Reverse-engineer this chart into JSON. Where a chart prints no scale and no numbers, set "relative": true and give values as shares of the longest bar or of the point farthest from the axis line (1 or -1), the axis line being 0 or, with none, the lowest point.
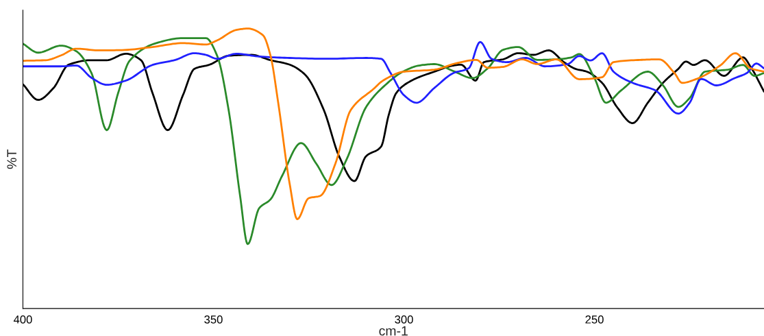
{
  "chart_data": {
    "type": "line",
    "relative": true,
    "xlabel": "cm-1",
    "ylabel": "%T",
    "xlim": [
      400,
      205.5
    ],
    "xticks": [
      400,
      350,
      300,
      250
    ],
    "grid": false,
    "marker": "none",
    "line_style": "solid",
    "series": [
      {
        "color": "#000000",
        "x": [
          400,
          396,
          392,
          388,
          382,
          378,
          373,
          369,
          366,
          362,
          358,
          355,
          351,
          346,
          340,
          335,
          330,
          326,
          321,
          317,
          313,
          310,
          306,
          304,
          302,
          298,
          292,
          287,
          285,
          281.2,
          279,
          274,
          270,
          266,
          262,
          258,
          255,
          252,
          248,
          244,
          240,
          236,
          232,
          228,
          226,
          224,
          221,
          216,
          211,
          209,
          205.5
        ],
        "values": [
          0.801,
          0.745,
          0.787,
          0.871,
          0.887,
          0.887,
          0.91,
          0.887,
          0.77,
          0.637,
          0.762,
          0.856,
          0.871,
          0.903,
          0.906,
          0.887,
          0.871,
          0.836,
          0.708,
          0.543,
          0.455,
          0.543,
          0.578,
          0.691,
          0.77,
          0.814,
          0.846,
          0.868,
          0.871,
          0.814,
          0.88,
          0.89,
          0.912,
          0.906,
          0.922,
          0.88,
          0.856,
          0.846,
          0.806,
          0.718,
          0.662,
          0.735,
          0.806,
          0.856,
          0.882,
          0.87,
          0.887,
          0.831,
          0.897,
          0.863,
          0.775
        ]
      },
      {
        "color": "#2a8a2a",
        "x": [
          400,
          396,
          390,
          386,
          382,
          378,
          375,
          372,
          365,
          358,
          352,
          349,
          346,
          343,
          341,
          338,
          335,
          332,
          327,
          323,
          319,
          315,
          310,
          305,
          300,
          296,
          292,
          287,
          282,
          278,
          274,
          270,
          265,
          260,
          256,
          254,
          250,
          247,
          243,
          236,
          232,
          228,
          225,
          221,
          215,
          211,
          208,
          205.5
        ],
        "values": [
          0.946,
          0.914,
          0.939,
          0.919,
          0.841,
          0.637,
          0.77,
          0.885,
          0.948,
          0.966,
          0.966,
          0.902,
          0.708,
          0.402,
          0.23,
          0.358,
          0.39,
          0.473,
          0.591,
          0.517,
          0.441,
          0.534,
          0.718,
          0.797,
          0.848,
          0.868,
          0.873,
          0.848,
          0.823,
          0.858,
          0.924,
          0.934,
          0.888,
          0.89,
          0.897,
          0.909,
          0.823,
          0.735,
          0.779,
          0.846,
          0.797,
          0.72,
          0.752,
          0.846,
          0.853,
          0.87,
          0.831,
          0.841
        ]
      },
      {
        "color": "#2020ff",
        "x": [
          400,
          390,
          386,
          382,
          378,
          373,
          366,
          360,
          355,
          352,
          349,
          344,
          338,
          330,
          320,
          310,
          306,
          303.5,
          300,
          296.7,
          292,
          287,
          283,
          280,
          277,
          273,
          268,
          263,
          257,
          254,
          251,
          248,
          245,
          240,
          234,
          228,
          225,
          222,
          218,
          213,
          210,
          207.5,
          205.5
        ],
        "values": [
          0.865,
          0.865,
          0.868,
          0.824,
          0.799,
          0.814,
          0.87,
          0.888,
          0.912,
          0.906,
          0.892,
          0.91,
          0.9,
          0.895,
          0.892,
          0.895,
          0.892,
          0.841,
          0.762,
          0.735,
          0.788,
          0.841,
          0.858,
          0.952,
          0.892,
          0.88,
          0.895,
          0.865,
          0.873,
          0.902,
          0.886,
          0.912,
          0.846,
          0.806,
          0.779,
          0.696,
          0.735,
          0.82,
          0.797,
          0.824,
          0.841,
          0.875,
          0.858
        ]
      },
      {
        "color": "#ff8000",
        "x": [
          400,
          394,
          390,
          386,
          380,
          374,
          366,
          358,
          352,
          349,
          344,
          341,
          337,
          335,
          333,
          330,
          328,
          325,
          322,
          318,
          314,
          308,
          305.5,
          300,
          292,
          286,
          281,
          278,
          274,
          269,
          265,
          260,
          254,
          248,
          245,
          238,
          233,
          229,
          227,
          223,
          217,
          213,
          209,
          205.5
        ],
        "values": [
          0.885,
          0.887,
          0.904,
          0.928,
          0.922,
          0.923,
          0.934,
          0.948,
          0.943,
          0.958,
          0.995,
          1,
          0.976,
          0.902,
          0.735,
          0.446,
          0.319,
          0.394,
          0.402,
          0.517,
          0.708,
          0.784,
          0.814,
          0.846,
          0.853,
          0.877,
          0.888,
          0.86,
          0.863,
          0.89,
          0.873,
          0.89,
          0.819,
          0.826,
          0.88,
          0.888,
          0.89,
          0.841,
          0.806,
          0.821,
          0.868,
          0.912,
          0.858,
          0.846
        ]
      }
    ]
  }
}
